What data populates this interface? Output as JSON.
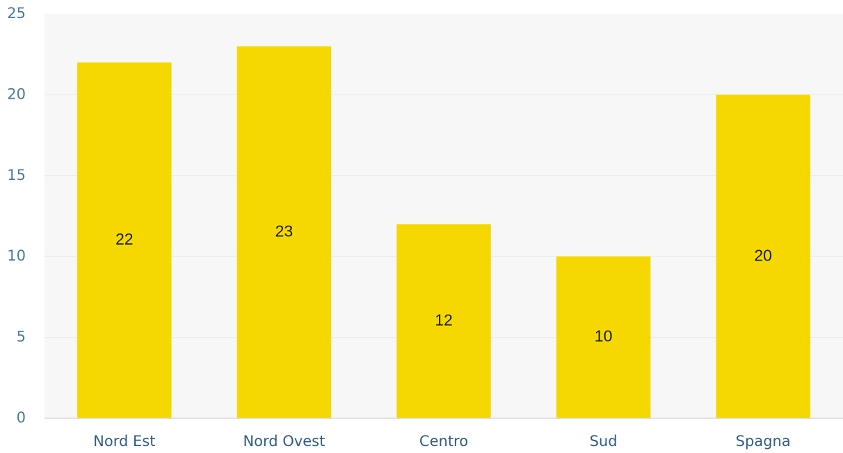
{
  "chart_data": {
    "type": "bar",
    "categories": [
      "Nord Est",
      "Nord Ovest",
      "Centro",
      "Sud",
      "Spagna"
    ],
    "values": [
      22,
      23,
      12,
      10,
      20
    ],
    "data_labels": [
      "22",
      "23",
      "12",
      "10",
      "20"
    ],
    "title": "",
    "xlabel": "",
    "ylabel": "",
    "ylim": [
      0,
      25
    ],
    "yticks": [
      0,
      5,
      10,
      15,
      20,
      25
    ],
    "ytick_labels": [
      "0",
      "5",
      "10",
      "15",
      "20",
      "25"
    ],
    "grid": true,
    "legend": "none",
    "bar_color": "#f5d800"
  }
}
